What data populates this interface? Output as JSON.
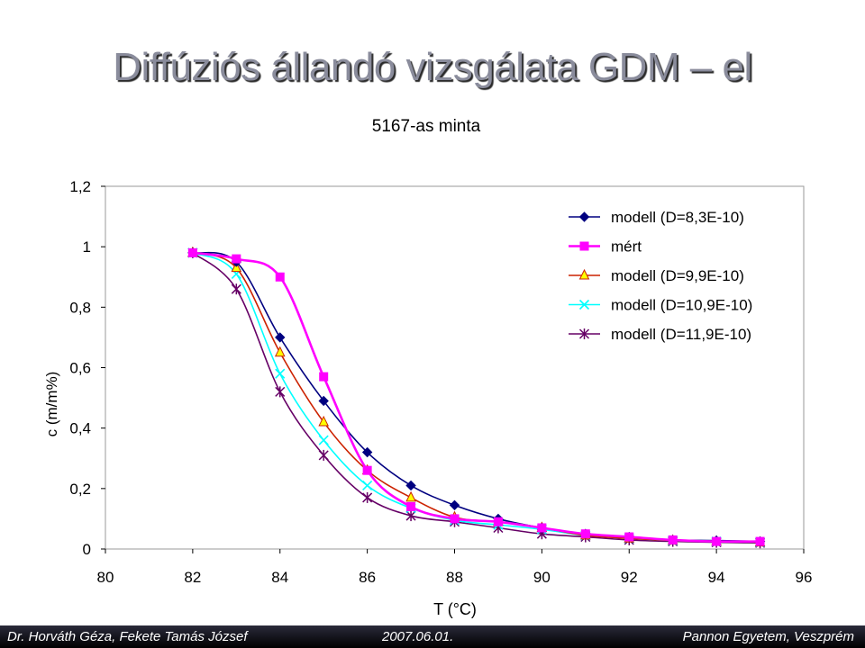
{
  "slide": {
    "title": "Diffúziós állandó vizsgálata GDM – el"
  },
  "footer": {
    "authors": "Dr. Horváth Géza, Fekete Tamás József",
    "date": "2007.06.01.",
    "organization": "Pannon Egyetem, Veszprém"
  },
  "chart_data": {
    "type": "line",
    "title": "5167-as minta",
    "xlabel": "T (°C)",
    "ylabel": "c (m/m%)",
    "xlim": [
      80,
      96
    ],
    "ylim": [
      0,
      1.2
    ],
    "x_ticks": [
      "80",
      "82",
      "84",
      "86",
      "88",
      "90",
      "92",
      "94",
      "96"
    ],
    "y_ticks": [
      "0",
      "0,2",
      "0,4",
      "0,6",
      "0,8",
      "1",
      "1,2"
    ],
    "grid": false,
    "legend_position": "top-right",
    "series": [
      {
        "name": "modell (D=8,3E-10)",
        "color": "#000080",
        "marker": "diamond",
        "x": [
          82,
          83,
          84,
          85,
          86,
          87,
          88,
          89,
          90,
          91,
          92,
          93,
          94,
          95
        ],
        "y": [
          0.98,
          0.95,
          0.7,
          0.49,
          0.32,
          0.21,
          0.145,
          0.1,
          0.07,
          0.05,
          0.04,
          0.03,
          0.028,
          0.025
        ]
      },
      {
        "name": "mért",
        "color": "#ff00ff",
        "marker": "square",
        "x": [
          82,
          83,
          84,
          85,
          86,
          87,
          88,
          89,
          90,
          91,
          92,
          93,
          94,
          95
        ],
        "y": [
          0.98,
          0.96,
          0.9,
          0.57,
          0.26,
          0.14,
          0.1,
          0.09,
          0.07,
          0.05,
          0.04,
          0.03,
          0.025,
          0.025
        ]
      },
      {
        "name": "modell (D=9,9E-10)",
        "color": "#ffff00",
        "line_color": "#cc2200",
        "marker": "triangle",
        "x": [
          82,
          83,
          84,
          85,
          86,
          87,
          88,
          89,
          90,
          91,
          92,
          93,
          94,
          95
        ],
        "y": [
          0.98,
          0.93,
          0.65,
          0.42,
          0.26,
          0.17,
          0.105,
          0.09,
          0.07,
          0.045,
          0.035,
          0.028,
          0.025,
          0.022
        ]
      },
      {
        "name": "modell (D=10,9E-10)",
        "color": "#00ffff",
        "marker": "x",
        "x": [
          82,
          83,
          84,
          85,
          86,
          87,
          88,
          89,
          90,
          91,
          92,
          93,
          94,
          95
        ],
        "y": [
          0.98,
          0.91,
          0.58,
          0.36,
          0.21,
          0.135,
          0.095,
          0.08,
          0.065,
          0.045,
          0.035,
          0.028,
          0.025,
          0.022
        ]
      },
      {
        "name": "modell (D=11,9E-10)",
        "color": "#660066",
        "marker": "star",
        "x": [
          82,
          83,
          84,
          85,
          86,
          87,
          88,
          89,
          90,
          91,
          92,
          93,
          94,
          95
        ],
        "y": [
          0.98,
          0.86,
          0.52,
          0.31,
          0.17,
          0.11,
          0.09,
          0.07,
          0.05,
          0.04,
          0.03,
          0.025,
          0.022,
          0.02
        ]
      }
    ]
  }
}
